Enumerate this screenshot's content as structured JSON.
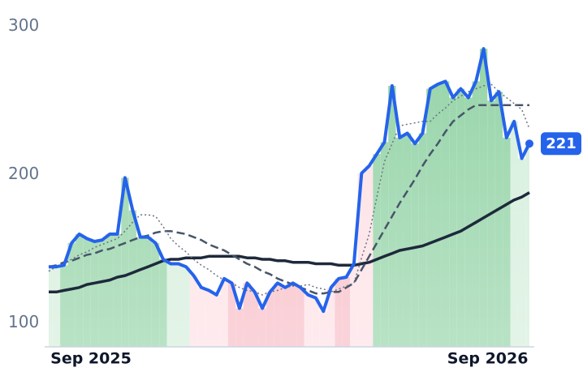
{
  "chart_data": {
    "type": "line",
    "categories": [
      null,
      null,
      null,
      null,
      null,
      "Sep 2025",
      null,
      null,
      null,
      null,
      null,
      null,
      null,
      null,
      null,
      null,
      null,
      null,
      null,
      null,
      null,
      null,
      null,
      null,
      null,
      null,
      null,
      null,
      null,
      null,
      null,
      null,
      null,
      null,
      null,
      null,
      null,
      null,
      null,
      null,
      null,
      null,
      null,
      null,
      null,
      null,
      null,
      null,
      null,
      null,
      null,
      null,
      null,
      null,
      null,
      null,
      null,
      "Sep 2026",
      null,
      null,
      null,
      null,
      null,
      null
    ],
    "ylim": [
      84,
      308
    ],
    "yticks": [
      100,
      200,
      300
    ],
    "band_colors": [
      "#d4eedb",
      "#d4eedb",
      "#93d3a6",
      "#93d3a6",
      "#93d3a6",
      "#93d3a6",
      "#93d3a6",
      "#93d3a6",
      "#93d3a6",
      "#93d3a6",
      "#93d3a6",
      "#93d3a6",
      "#93d3a6",
      "#93d3a6",
      "#93d3a6",
      "#93d3a6",
      "#d4eedb",
      "#d4eedb",
      "#d4eedb",
      "#fde0e5",
      "#fde0e5",
      "#fde0e5",
      "#fde0e5",
      "#fde0e5",
      "#f8bcc6",
      "#f8bcc6",
      "#f8bcc6",
      "#f8bcc6",
      "#f8bcc6",
      "#f8bcc6",
      "#f8bcc6",
      "#f8bcc6",
      "#f8bcc6",
      "#f8bcc6",
      "#fde0e5",
      "#fde0e5",
      "#fde0e5",
      "#fde0e5",
      "#f8bcc6",
      "#f8bcc6",
      "#fde0e5",
      "#fde0e5",
      "#fde0e5",
      "#93d3a6",
      "#93d3a6",
      "#93d3a6",
      "#93d3a6",
      "#93d3a6",
      "#93d3a6",
      "#93d3a6",
      "#93d3a6",
      "#93d3a6",
      "#93d3a6",
      "#93d3a6",
      "#93d3a6",
      "#93d3a6",
      "#93d3a6",
      "#93d3a6",
      "#93d3a6",
      "#93d3a6",
      "#93d3a6",
      "#d4eedb",
      "#d4eedb",
      "#d4eedb"
    ],
    "series": [
      {
        "color": "#2563eb",
        "style": "solid",
        "width": 4,
        "bands": true,
        "values": [
          138,
          138,
          139,
          154,
          160,
          157,
          155,
          156,
          160,
          160,
          198,
          176,
          158,
          158,
          154,
          143,
          140,
          140,
          138,
          132,
          124,
          122,
          119,
          130,
          127,
          110,
          127,
          121,
          110,
          121,
          127,
          124,
          127,
          124,
          119,
          117,
          108,
          124,
          130,
          131,
          140,
          201,
          206,
          214,
          222,
          260,
          225,
          228,
          221,
          228,
          258,
          261,
          263,
          252,
          258,
          252,
          263,
          285,
          250,
          256,
          225,
          236,
          211,
          221
        ]
      },
      {
        "color": "#6b7280",
        "style": "dotted",
        "width": 1.5,
        "values": [
          135,
          138,
          140,
          143,
          146,
          148,
          151,
          153,
          155,
          157,
          162,
          168,
          173,
          173,
          172,
          165,
          157,
          152,
          148,
          143,
          139,
          136,
          132,
          129,
          127,
          124,
          122,
          121,
          119,
          121,
          122,
          124,
          125,
          125,
          126,
          124,
          123,
          121,
          123,
          125,
          127,
          144,
          160,
          185,
          209,
          221,
          233,
          234,
          235,
          236,
          236,
          241,
          245,
          250,
          253,
          256,
          258,
          260,
          261,
          256,
          252,
          248,
          244,
          231
        ]
      },
      {
        "color": "#475569",
        "style": "dashed",
        "width": 2.5,
        "values": [
          138,
          139,
          141,
          142,
          144,
          146,
          147,
          149,
          150,
          152,
          154,
          156,
          158,
          159,
          161,
          162,
          162,
          161,
          160,
          158,
          156,
          153,
          151,
          149,
          146,
          143,
          140,
          138,
          135,
          133,
          130,
          128,
          126,
          124,
          122,
          120,
          120,
          121,
          121,
          124,
          127,
          136,
          145,
          154,
          163,
          172,
          181,
          189,
          197,
          206,
          214,
          221,
          229,
          236,
          240,
          244,
          247,
          247,
          247,
          247,
          247,
          247,
          247,
          247
        ]
      },
      {
        "color": "#1e293b",
        "style": "solid",
        "width": 3.5,
        "values": [
          121,
          121,
          122,
          123,
          124,
          126,
          127,
          128,
          129,
          131,
          132,
          134,
          136,
          138,
          140,
          142,
          143,
          143,
          144,
          144,
          144,
          145,
          145,
          145,
          145,
          145,
          144,
          144,
          143,
          143,
          142,
          142,
          141,
          141,
          141,
          140,
          140,
          140,
          139,
          139,
          139,
          140,
          141,
          143,
          145,
          147,
          149,
          150,
          151,
          152,
          154,
          156,
          158,
          160,
          162,
          165,
          168,
          171,
          174,
          177,
          180,
          183,
          185,
          188
        ]
      }
    ]
  }
}
